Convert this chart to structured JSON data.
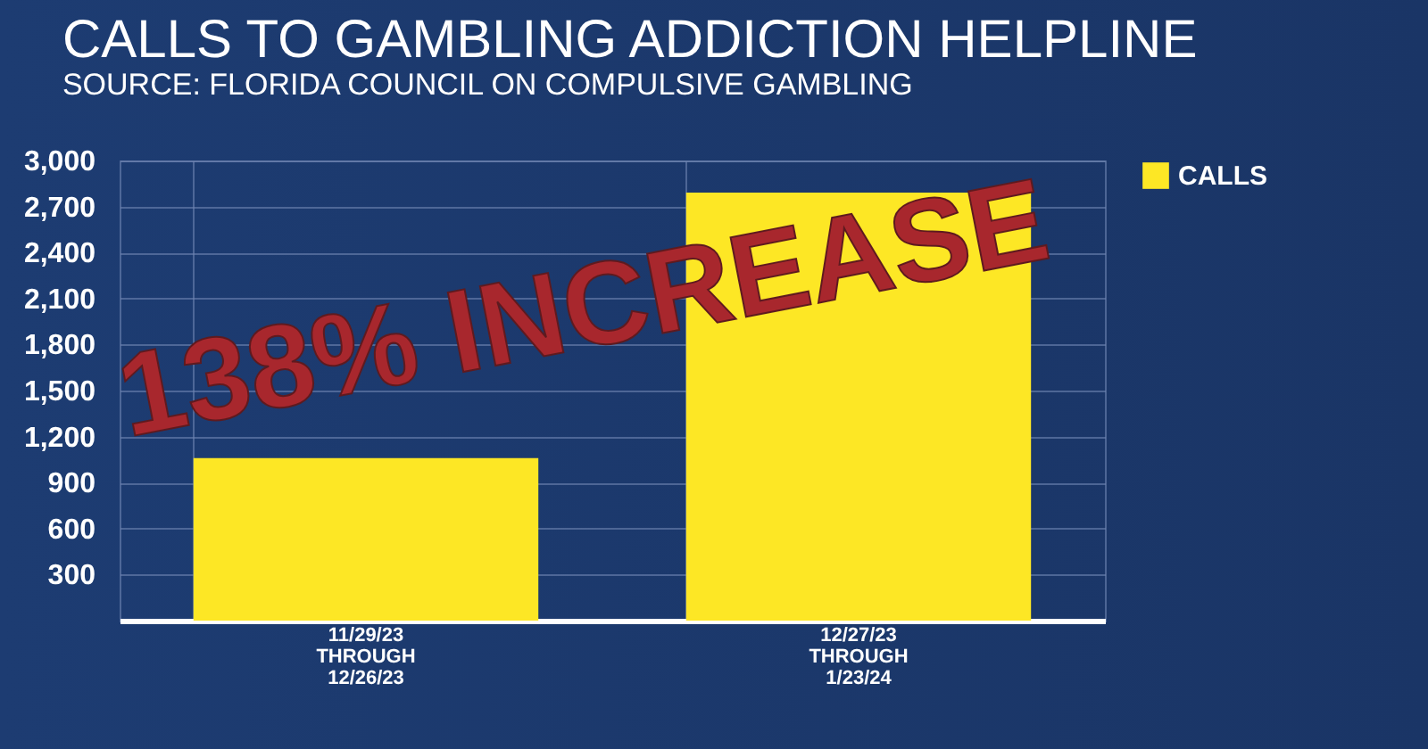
{
  "chart_data": {
    "type": "bar",
    "title": "CALLS TO GAMBLING ADDICTION HELPLINE",
    "subtitle": "SOURCE: FLORIDA COUNCIL ON COMPULSIVE GAMBLING",
    "categories": [
      "11/29/23\nTHROUGH\n12/26/23",
      "12/27/23\nTHROUGH\n1/23/24"
    ],
    "series": [
      {
        "name": "CALLS",
        "color": "#fde725",
        "values": [
          1060,
          2790
        ]
      }
    ],
    "ylim": [
      0,
      3000
    ],
    "yticks": [
      {
        "value": 0,
        "label": null
      },
      300,
      600,
      900,
      {
        "value": 1200,
        "label": "1,200"
      },
      {
        "value": 1500,
        "label": "1,500"
      },
      {
        "value": 1800,
        "label": "1,800"
      },
      {
        "value": 2100,
        "label": "2,100"
      },
      {
        "value": 2400,
        "label": "2,400"
      },
      {
        "value": 2700,
        "label": "2,700"
      },
      {
        "value": 3000,
        "label": "3,000"
      }
    ],
    "grid": true,
    "legend": "top right",
    "annotations": [
      "138% INCREASE"
    ]
  }
}
